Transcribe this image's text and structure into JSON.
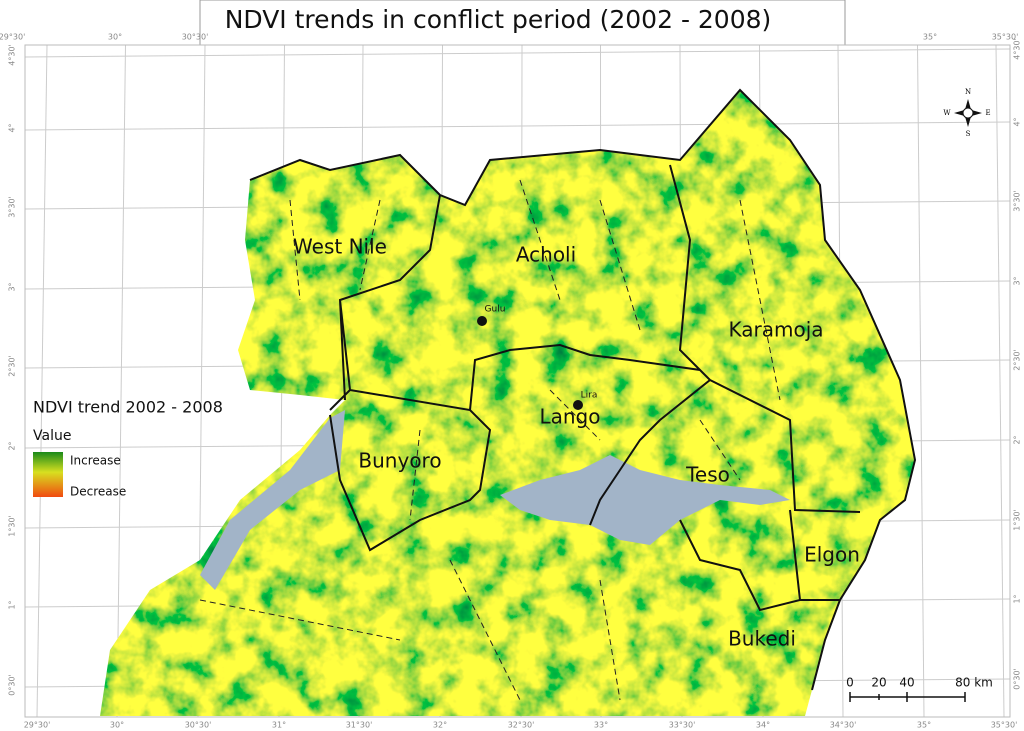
{
  "title": "NDVI trends in conflict period (2002 - 2008)",
  "regions": [
    "West Nile",
    "Acholi",
    "Karamoja",
    "Lango",
    "Bunyoro",
    "Teso",
    "Elgon",
    "Bukedi"
  ],
  "towns": [
    "Gulu",
    "Lira"
  ],
  "legend": {
    "title": "NDVI trend 2002 - 2008",
    "subtitle": "Value",
    "items": [
      "Increase",
      "Decrease"
    ]
  },
  "scale_bar": [
    "0",
    "20",
    "40",
    "80 km"
  ],
  "compass": [
    "N",
    "S",
    "E",
    "W"
  ],
  "graticule": {
    "top": [
      "29°30'",
      "30°",
      "30°30'",
      "35°",
      "35°30'"
    ],
    "bottom": [
      "29°30'",
      "30°",
      "30°30'",
      "31°",
      "31°30'",
      "32°",
      "32°30'",
      "33°",
      "33°30'",
      "34°",
      "34°30'",
      "35°",
      "35°30'"
    ],
    "left": [
      "4°30'",
      "4°",
      "3°30'",
      "3°",
      "2°30'",
      "2°",
      "1°30'",
      "1°",
      "0°30'"
    ],
    "right": [
      "4°30'",
      "4°",
      "3°30'",
      "3°",
      "2°30'",
      "2°",
      "1°30'",
      "1°",
      "0°30'"
    ]
  }
}
